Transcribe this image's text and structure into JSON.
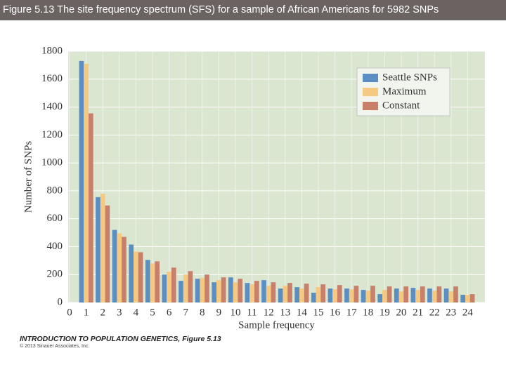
{
  "header": {
    "title": "Figure 5.13  The site frequency spectrum (SFS) for a sample of African Americans for 5982 SNPs"
  },
  "chart_data": {
    "type": "bar",
    "x_label": "Sample frequency",
    "y_label": "Number of SNPs",
    "categories": [
      "0",
      "1",
      "2",
      "3",
      "4",
      "5",
      "6",
      "7",
      "8",
      "9",
      "10",
      "11",
      "12",
      "13",
      "14",
      "15",
      "16",
      "17",
      "18",
      "19",
      "20",
      "21",
      "22",
      "23",
      "24"
    ],
    "series": [
      {
        "name": "Seattle SNPs",
        "color": "#5b8ec2",
        "values": [
          null,
          1730,
          755,
          520,
          415,
          305,
          200,
          155,
          170,
          145,
          180,
          140,
          160,
          100,
          110,
          70,
          100,
          100,
          90,
          60,
          100,
          105,
          100,
          100,
          55
        ]
      },
      {
        "name": "Maximum",
        "color": "#f6c983",
        "values": [
          null,
          1710,
          780,
          495,
          365,
          280,
          220,
          200,
          175,
          160,
          145,
          130,
          120,
          120,
          100,
          110,
          95,
          95,
          85,
          90,
          80,
          90,
          85,
          80,
          55
        ]
      },
      {
        "name": "Constant",
        "color": "#c9806b",
        "values": [
          null,
          1355,
          695,
          470,
          360,
          295,
          250,
          225,
          200,
          180,
          170,
          155,
          145,
          140,
          135,
          130,
          125,
          120,
          120,
          115,
          115,
          115,
          115,
          115,
          60
        ]
      }
    ],
    "ylim": [
      0,
      1800
    ],
    "yticks": [
      0,
      200,
      400,
      600,
      800,
      1000,
      1200,
      1400,
      1600,
      1800
    ],
    "grid": true,
    "legend": "top-right",
    "plot_background": "#dbe6d1"
  },
  "footer": {
    "source": "INTRODUCTION TO POPULATION GENETICS, Figure 5.13",
    "copyright": "© 2013 Sinauer Associates, Inc."
  }
}
